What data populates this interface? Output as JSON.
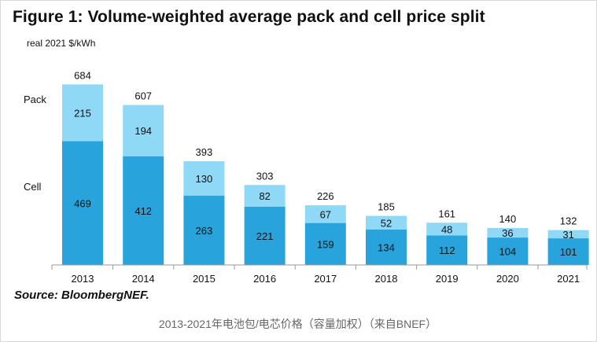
{
  "figure": {
    "title": "Figure 1: Volume-weighted average pack and cell price split",
    "unit_label": "real 2021 $/kWh",
    "legend": {
      "pack_label": "Pack",
      "cell_label": "Cell"
    },
    "source": "Source: BloombergNEF.",
    "caption": "2013-2021年电池包/电芯价格（容量加权）（来自BNEF）"
  },
  "colors": {
    "pack": "#8fd8f6",
    "cell": "#29a3dc",
    "axis": "#9a9a9a",
    "text": "#111111"
  },
  "chart_data": {
    "type": "bar",
    "stacked": true,
    "title": "Figure 1: Volume-weighted average pack and cell price split",
    "ylabel": "real 2021 $/kWh",
    "xlabel": "",
    "ylim": [
      0,
      700
    ],
    "grid": false,
    "categories": [
      "2013",
      "2014",
      "2015",
      "2016",
      "2017",
      "2018",
      "2019",
      "2020",
      "2021"
    ],
    "series": [
      {
        "name": "Cell",
        "values": [
          469,
          412,
          263,
          221,
          159,
          134,
          112,
          104,
          101
        ]
      },
      {
        "name": "Pack",
        "values": [
          215,
          194,
          130,
          82,
          67,
          52,
          48,
          36,
          31
        ]
      }
    ],
    "totals": [
      684,
      607,
      393,
      303,
      226,
      185,
      161,
      140,
      132
    ]
  }
}
